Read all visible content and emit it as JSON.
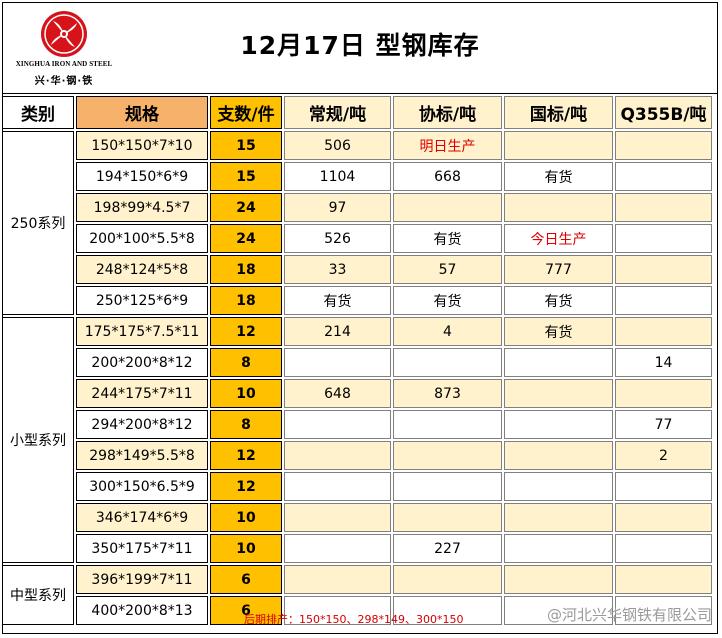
{
  "logo": {
    "english_name": "XINGHUA IRON AND STEEL",
    "chinese_name": "兴·华·钢·铁",
    "accent_color": "#d7131a"
  },
  "title": "12月17日 型钢库存",
  "headers": {
    "category": "类别",
    "spec": "规格",
    "count": "支数/件",
    "changgui": "常规/吨",
    "xiebiao": "协标/吨",
    "guobiao": "国标/吨",
    "q355b": "Q355B/吨"
  },
  "groups": {
    "g250": "250系列",
    "small": "小型系列",
    "medium": "中型系列"
  },
  "rows": [
    {
      "spec": "150*150*7*10",
      "count": "15",
      "changgui": "506",
      "xiebiao": "明日生产",
      "guobiao": "",
      "q355b": ""
    },
    {
      "spec": "194*150*6*9",
      "count": "15",
      "changgui": "1104",
      "xiebiao": "668",
      "guobiao": "有货",
      "q355b": ""
    },
    {
      "spec": "198*99*4.5*7",
      "count": "24",
      "changgui": "97",
      "xiebiao": "",
      "guobiao": "",
      "q355b": ""
    },
    {
      "spec": "200*100*5.5*8",
      "count": "24",
      "changgui": "526",
      "xiebiao": "有货",
      "guobiao": "今日生产",
      "q355b": ""
    },
    {
      "spec": "248*124*5*8",
      "count": "18",
      "changgui": "33",
      "xiebiao": "57",
      "guobiao": "777",
      "q355b": ""
    },
    {
      "spec": "250*125*6*9",
      "count": "18",
      "changgui": "有货",
      "xiebiao": "有货",
      "guobiao": "有货",
      "q355b": ""
    },
    {
      "spec": "175*175*7.5*11",
      "count": "12",
      "changgui": "214",
      "xiebiao": "4",
      "guobiao": "有货",
      "q355b": ""
    },
    {
      "spec": "200*200*8*12",
      "count": "8",
      "changgui": "",
      "xiebiao": "",
      "guobiao": "",
      "q355b": "14"
    },
    {
      "spec": "244*175*7*11",
      "count": "10",
      "changgui": "648",
      "xiebiao": "873",
      "guobiao": "",
      "q355b": ""
    },
    {
      "spec": "294*200*8*12",
      "count": "8",
      "changgui": "",
      "xiebiao": "",
      "guobiao": "",
      "q355b": "77"
    },
    {
      "spec": "298*149*5.5*8",
      "count": "12",
      "changgui": "",
      "xiebiao": "",
      "guobiao": "",
      "q355b": "2"
    },
    {
      "spec": "300*150*6.5*9",
      "count": "12",
      "changgui": "",
      "xiebiao": "",
      "guobiao": "",
      "q355b": ""
    },
    {
      "spec": "346*174*6*9",
      "count": "10",
      "changgui": "",
      "xiebiao": "",
      "guobiao": "",
      "q355b": ""
    },
    {
      "spec": "350*175*7*11",
      "count": "10",
      "changgui": "",
      "xiebiao": "227",
      "guobiao": "",
      "q355b": ""
    },
    {
      "spec": "396*199*7*11",
      "count": "6",
      "changgui": "",
      "xiebiao": "",
      "guobiao": "",
      "q355b": ""
    },
    {
      "spec": "400*200*8*13",
      "count": "6",
      "changgui": "",
      "xiebiao": "",
      "guobiao": "",
      "q355b": ""
    }
  ],
  "footer": {
    "note": "后期排产：150*150、298*149、300*150",
    "watermark": "@河北兴华钢铁有限公司"
  },
  "colors": {
    "header_spec": "#f6b26b",
    "count_column": "#ffc000",
    "stripe": "#fff2cc",
    "highlight_text": "#e00000"
  }
}
